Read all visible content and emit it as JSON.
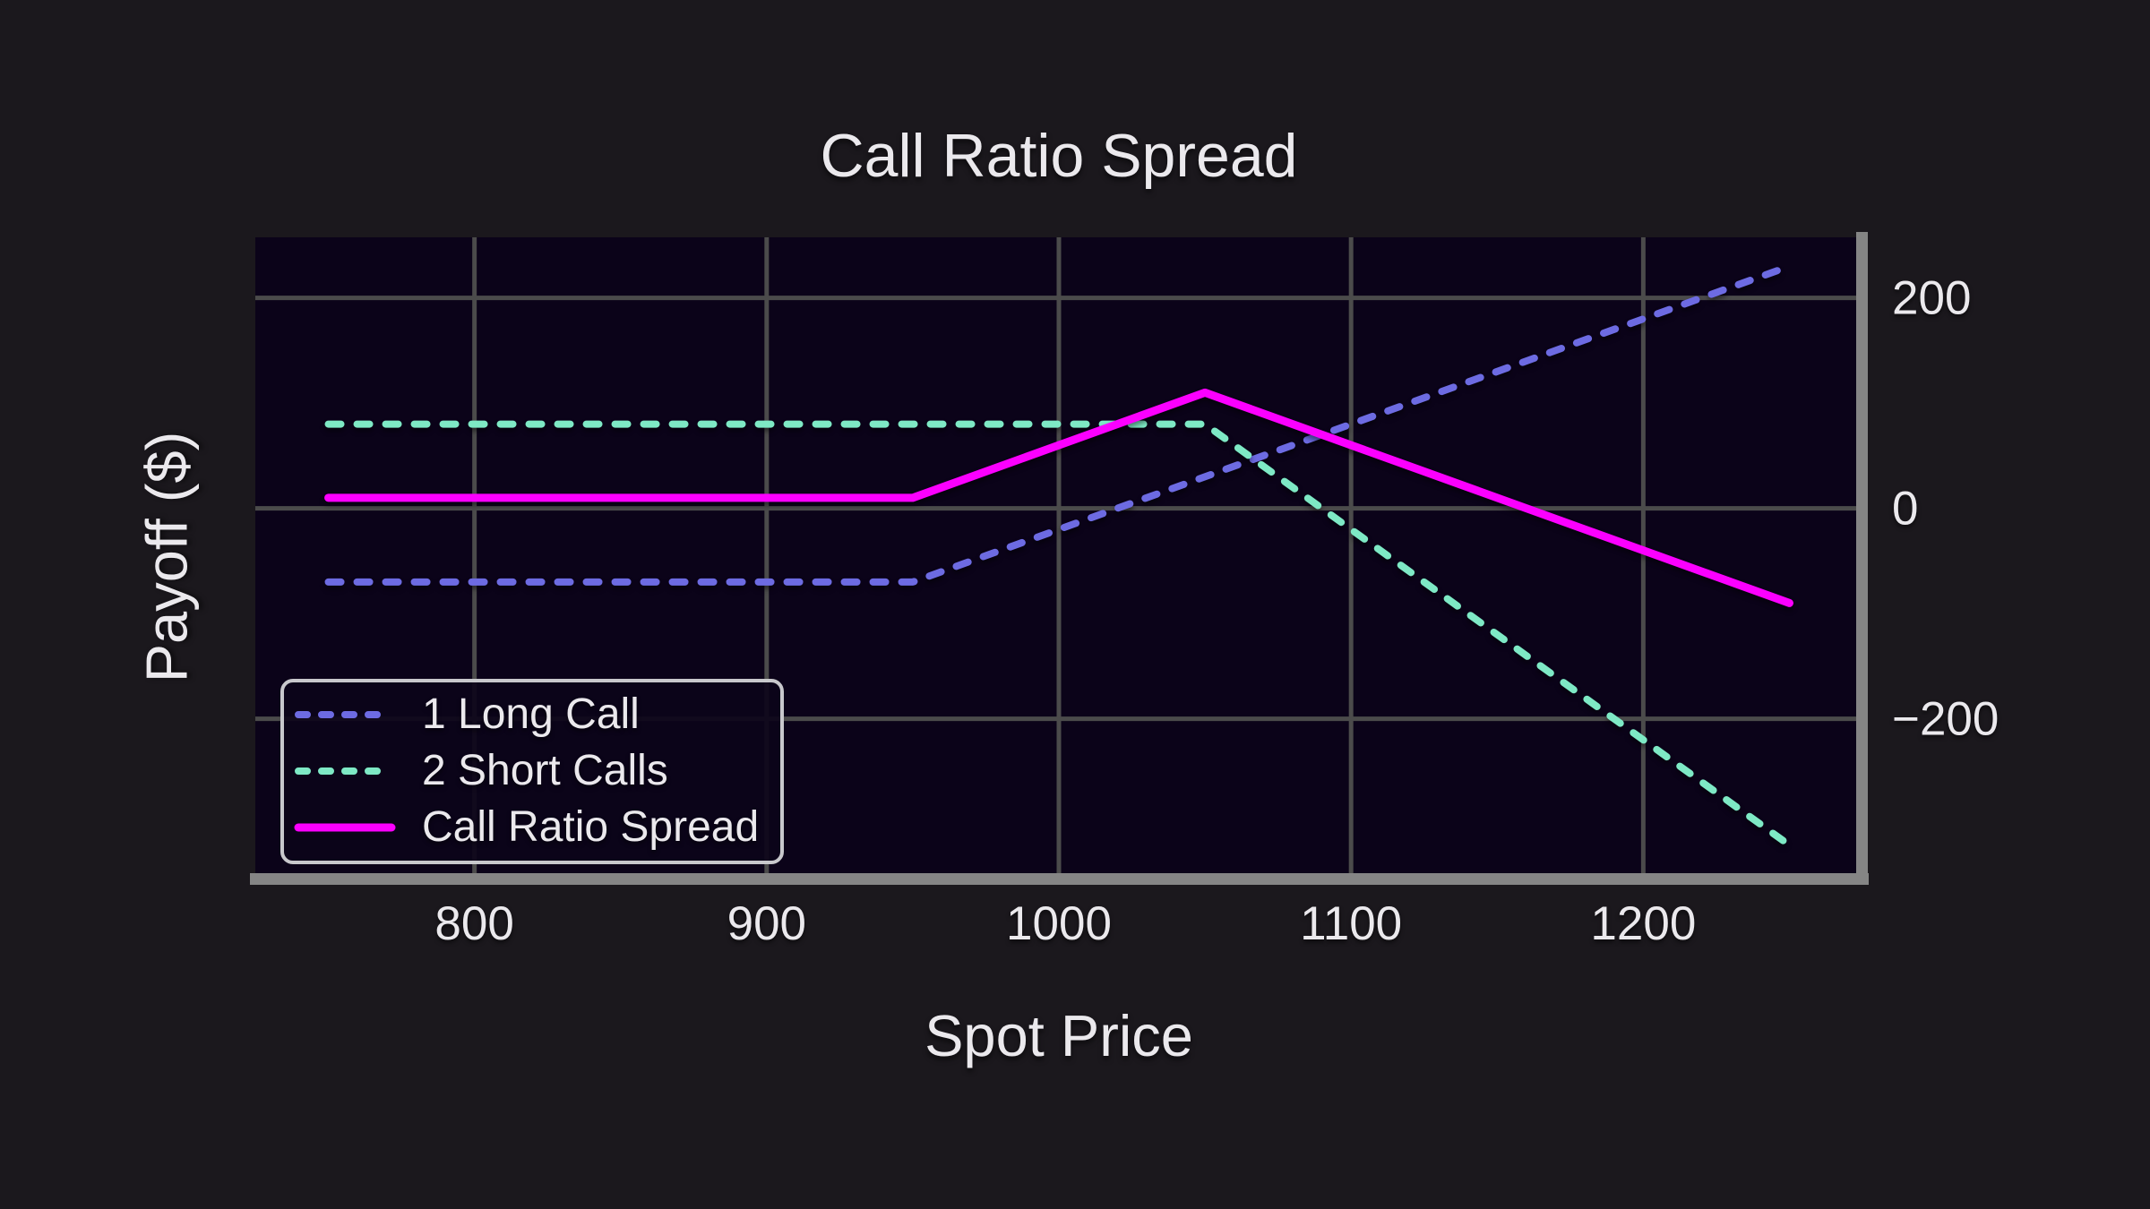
{
  "figure": {
    "title": "Call Ratio Spread",
    "colors": {
      "figure_bg": "#1b181d",
      "plot_bg": "#0b0319",
      "grid": "#4b4b4b",
      "spine": "#858585",
      "text": "#ebe9ed",
      "legend_border": "#c8c8cc",
      "legend_bg": "#0c0419"
    }
  },
  "chart_data": {
    "type": "line",
    "title": "Call Ratio Spread",
    "xlabel": "Spot Price",
    "ylabel": "Payoff ($)",
    "xlim": [
      725,
      1275
    ],
    "ylim": [
      -347.5,
      257.5
    ],
    "xticks": [
      800,
      900,
      1000,
      1100,
      1200
    ],
    "xtick_labels": [
      "800",
      "900",
      "1000",
      "1100",
      "1200"
    ],
    "yticks": [
      200,
      0,
      -200
    ],
    "ytick_labels": [
      "200",
      "0",
      "−200"
    ],
    "grid": true,
    "y_axis_side": "right",
    "legend_position": "lower left",
    "series": [
      {
        "name": "1 Long Call",
        "color": "#6d6be2",
        "style": "dashed",
        "x": [
          750,
          950,
          1250
        ],
        "y": [
          -70,
          -70,
          230
        ]
      },
      {
        "name": "2 Short Calls",
        "color": "#7ee9c5",
        "style": "dashed",
        "x": [
          750,
          1050,
          1250
        ],
        "y": [
          80,
          80,
          -320
        ]
      },
      {
        "name": "Call Ratio Spread",
        "color": "#fb00ff",
        "style": "solid",
        "x": [
          750,
          950,
          1050,
          1250
        ],
        "y": [
          10,
          10,
          110,
          -90
        ]
      }
    ]
  }
}
